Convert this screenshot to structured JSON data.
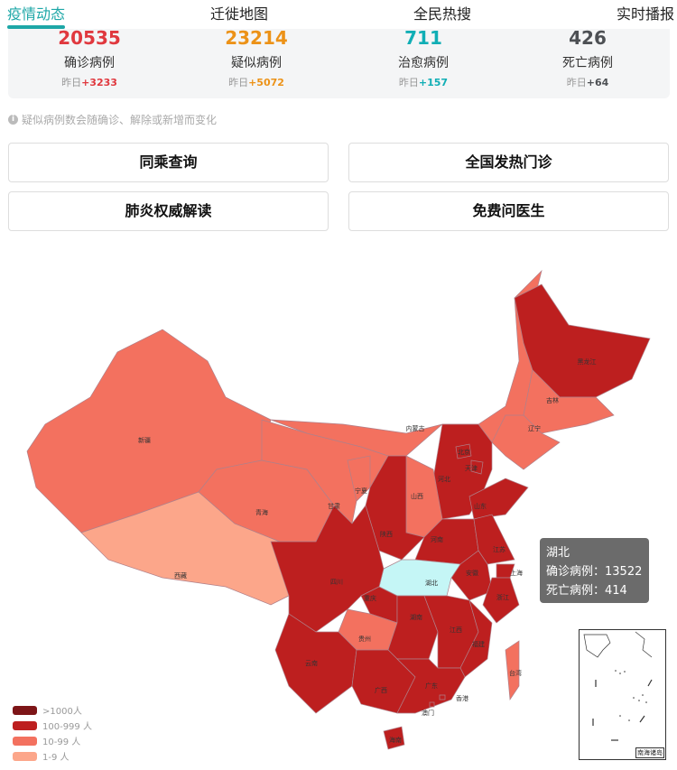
{
  "tabs": [
    {
      "label": "疫情动态",
      "active": true
    },
    {
      "label": "迁徙地图"
    },
    {
      "label": "全民热搜"
    },
    {
      "label": "实时播报"
    }
  ],
  "stats": [
    {
      "value": "20535",
      "label": "确诊病例",
      "yesterday_prefix": "昨日",
      "yesterday_delta": "+3233",
      "color": "#e0383e"
    },
    {
      "value": "23214",
      "label": "疑似病例",
      "yesterday_prefix": "昨日",
      "yesterday_delta": "+5072",
      "color": "#ec9217"
    },
    {
      "value": "711",
      "label": "治愈病例",
      "yesterday_prefix": "昨日",
      "yesterday_delta": "+157",
      "color": "#10aeb5"
    },
    {
      "value": "426",
      "label": "死亡病例",
      "yesterday_prefix": "昨日",
      "yesterday_delta": "+64",
      "color": "#4d5054"
    }
  ],
  "note": {
    "icon": "info-icon",
    "text": "疑似病例数会随确诊、解除或新增而变化"
  },
  "buttons": [
    "同乘查询",
    "全国发热门诊",
    "肺炎权威解读",
    "免费问医生"
  ],
  "legend": [
    {
      "label": ">1000人",
      "color": "#7d1517"
    },
    {
      "label": "100-999 人",
      "color": "#bd1f1f"
    },
    {
      "label": "10-99 人",
      "color": "#f3715f"
    },
    {
      "label": "1-9 人",
      "color": "#fca68a"
    }
  ],
  "highlight_color": "#c5f6f6",
  "provinces": {
    "heilongjiang": "黑龙江",
    "jilin": "吉林",
    "liaoning": "辽宁",
    "neimenggu": "内蒙古",
    "xinjiang": "新疆",
    "beijing": "北京",
    "tianjin": "天津",
    "hebei": "河北",
    "shanxi": "山西",
    "ningxia": "宁夏",
    "gansu": "甘肃",
    "qinghai": "青海",
    "xizang": "西藏",
    "shaanxi": "陕西",
    "shandong": "山东",
    "henan": "河南",
    "jiangsu": "江苏",
    "anhui": "安徽",
    "shanghai": "上海",
    "hubei": "湖北",
    "sichuan": "四川",
    "chongqing": "重庆",
    "zhejiang": "浙江",
    "guizhou": "贵州",
    "hunan": "湖南",
    "jiangxi": "江西",
    "fujian": "福建",
    "yunnan": "云南",
    "guangxi": "广西",
    "guangdong": "广东",
    "taiwan": "台湾",
    "xianggang": "香港",
    "aomen": "澳门",
    "hainan": "海南"
  },
  "tooltip": {
    "province": "湖北",
    "confirmed_label": "确诊病例：",
    "confirmed": "13522",
    "death_label": "死亡病例：",
    "death": "414"
  },
  "inset_label": "南海诸岛"
}
